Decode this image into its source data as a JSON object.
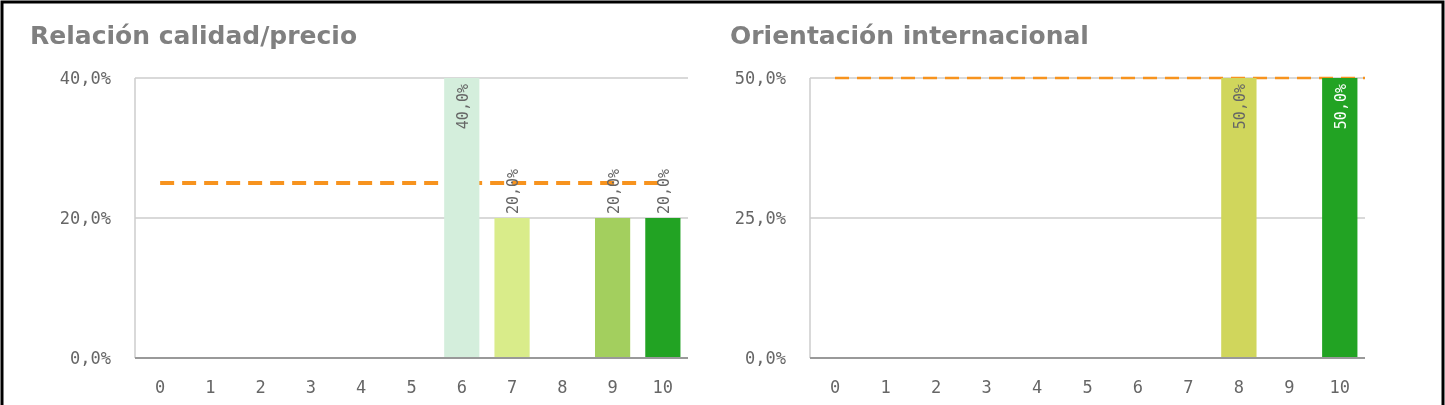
{
  "chart_data": [
    {
      "type": "bar",
      "title": "Relación calidad/precio",
      "categories": [
        "0",
        "1",
        "2",
        "3",
        "4",
        "5",
        "6",
        "7",
        "8",
        "9",
        "10"
      ],
      "values": [
        null,
        null,
        null,
        null,
        null,
        null,
        40,
        20,
        null,
        20,
        20
      ],
      "colors": [
        null,
        null,
        null,
        null,
        null,
        null,
        "#d4eedc",
        "#d9ec8a",
        null,
        "#a3cf5e",
        "#22a323"
      ],
      "value_labels": [
        null,
        null,
        null,
        null,
        null,
        null,
        "40,0%",
        "20,0%",
        null,
        "20,0%",
        "20,0%"
      ],
      "ylim": [
        0,
        40
      ],
      "yticks": [
        {
          "value": 0,
          "label": "0,0%"
        },
        {
          "value": 20,
          "label": "20,0%"
        },
        {
          "value": 40,
          "label": "40,0%"
        }
      ],
      "grid": "y",
      "ref_lines": [
        {
          "axis": "y",
          "value": 25,
          "color": "#f7931e",
          "line_style": "dashed"
        }
      ]
    },
    {
      "type": "bar",
      "title": "Orientación internacional",
      "categories": [
        "0",
        "1",
        "2",
        "3",
        "4",
        "5",
        "6",
        "7",
        "8",
        "9",
        "10"
      ],
      "values": [
        null,
        null,
        null,
        null,
        null,
        null,
        null,
        null,
        50,
        null,
        50
      ],
      "colors": [
        null,
        null,
        null,
        null,
        null,
        null,
        null,
        null,
        "#d0d65c",
        null,
        "#22a323"
      ],
      "value_labels": [
        null,
        null,
        null,
        null,
        null,
        null,
        null,
        null,
        "50,0%",
        null,
        "50,0%"
      ],
      "ylim": [
        0,
        50
      ],
      "yticks": [
        {
          "value": 0,
          "label": "0,0%"
        },
        {
          "value": 25,
          "label": "25,0%"
        },
        {
          "value": 50,
          "label": "50,0%"
        }
      ],
      "grid": "y",
      "ref_lines": [
        {
          "axis": "y",
          "value": 50,
          "color": "#f7931e",
          "line_style": "dashed"
        }
      ]
    }
  ]
}
